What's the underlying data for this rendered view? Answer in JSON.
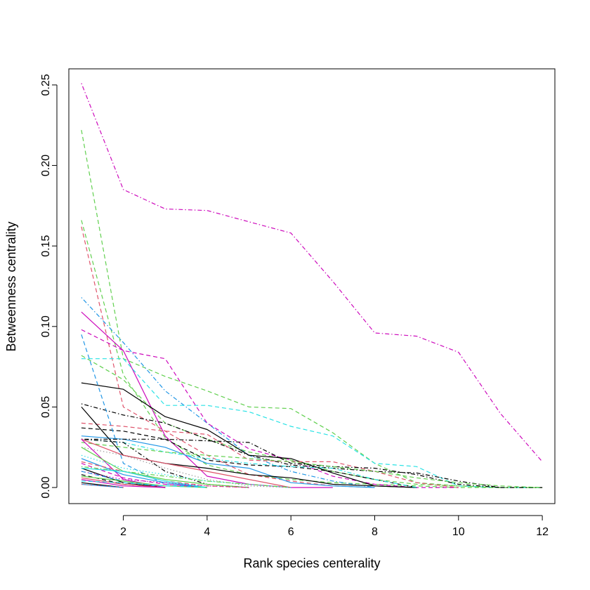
{
  "chart_data": {
    "type": "line",
    "title": "",
    "xlabel": "Rank species centerality",
    "ylabel": "Betweenness centrality",
    "xlim": [
      0.7,
      12.3
    ],
    "ylim": [
      -0.01,
      0.26
    ],
    "xticks": [
      2,
      4,
      6,
      8,
      10,
      12
    ],
    "yticks": [
      0.0,
      0.05,
      0.1,
      0.15,
      0.2,
      0.25
    ],
    "xtick_labels": [
      "2",
      "4",
      "6",
      "8",
      "10",
      "12"
    ],
    "ytick_labels": [
      "0.00",
      "0.05",
      "0.10",
      "0.15",
      "0.20",
      "0.25"
    ],
    "grid": false,
    "legend": "none",
    "series": [
      {
        "color": "#CD0BBC",
        "dash": "dotdash",
        "x": [
          1,
          2,
          3,
          4,
          5,
          6,
          7,
          8,
          9,
          10,
          11,
          12
        ],
        "y": [
          0.251,
          0.185,
          0.173,
          0.172,
          0.165,
          0.158,
          0.128,
          0.096,
          0.094,
          0.084,
          0.046,
          0.016
        ]
      },
      {
        "color": "#61D04F",
        "dash": "dashed",
        "x": [
          1,
          2,
          3,
          4,
          5,
          6,
          7,
          8,
          9,
          10,
          11,
          12
        ],
        "y": [
          0.222,
          0.08,
          0.069,
          0.06,
          0.05,
          0.049,
          0.034,
          0.015,
          0.003,
          0.001,
          0.0,
          0.0
        ]
      },
      {
        "color": "#61D04F",
        "dash": "dashed",
        "x": [
          1,
          2,
          3,
          4,
          5,
          6,
          7,
          8,
          9,
          10,
          11,
          12
        ],
        "y": [
          0.166,
          0.07,
          0.031,
          0.014,
          0.008,
          0.005,
          0.003,
          0.002,
          0.001,
          0.0,
          0.0,
          0.0
        ]
      },
      {
        "color": "#DF536B",
        "dash": "dashed",
        "x": [
          1,
          2,
          3,
          4,
          5,
          6,
          7,
          8
        ],
        "y": [
          0.162,
          0.05,
          0.035,
          0.02,
          0.008,
          0.004,
          0.001,
          0.0
        ]
      },
      {
        "color": "#2297E6",
        "dash": "dotdash",
        "x": [
          1,
          2,
          3,
          4,
          5,
          6,
          7,
          8
        ],
        "y": [
          0.118,
          0.09,
          0.06,
          0.04,
          0.02,
          0.01,
          0.004,
          0.0
        ]
      },
      {
        "color": "#CD0BBC",
        "dash": "solid",
        "x": [
          1,
          2,
          3,
          4,
          5,
          6,
          7
        ],
        "y": [
          0.109,
          0.085,
          0.032,
          0.007,
          0.002,
          0.0,
          0.0
        ]
      },
      {
        "color": "#CD0BBC",
        "dash": "dashed",
        "x": [
          1,
          2,
          3,
          4,
          5,
          6,
          7,
          8,
          9,
          10
        ],
        "y": [
          0.098,
          0.085,
          0.08,
          0.04,
          0.024,
          0.017,
          0.007,
          0.002,
          0.0,
          0.0
        ]
      },
      {
        "color": "#28E2E5",
        "dash": "dashed",
        "x": [
          1,
          2,
          3,
          4,
          5,
          6,
          7,
          8,
          9,
          10,
          11,
          12
        ],
        "y": [
          0.08,
          0.08,
          0.051,
          0.051,
          0.047,
          0.038,
          0.032,
          0.015,
          0.013,
          0.001,
          0.0,
          0.0
        ]
      },
      {
        "color": "#61D04F",
        "dash": "dashed",
        "x": [
          1,
          2,
          3,
          4,
          5,
          6,
          7,
          8,
          9,
          10,
          11,
          12
        ],
        "y": [
          0.082,
          0.067,
          0.04,
          0.03,
          0.022,
          0.017,
          0.01,
          0.005,
          0.002,
          0.001,
          0.0,
          0.0
        ]
      },
      {
        "color": "#000000",
        "dash": "solid",
        "x": [
          1,
          2,
          3,
          4,
          5,
          6,
          7,
          8,
          9
        ],
        "y": [
          0.065,
          0.061,
          0.044,
          0.036,
          0.02,
          0.018,
          0.009,
          0.001,
          0.0
        ]
      },
      {
        "color": "#000000",
        "dash": "dotdash",
        "x": [
          1,
          2,
          3,
          4,
          5,
          6,
          7,
          8,
          9,
          10,
          11,
          12
        ],
        "y": [
          0.052,
          0.045,
          0.04,
          0.03,
          0.02,
          0.014,
          0.012,
          0.01,
          0.009,
          0.004,
          0.0,
          0.0
        ]
      },
      {
        "color": "#DF536B",
        "dash": "dashed",
        "x": [
          1,
          2,
          3,
          4,
          5,
          6,
          7,
          8,
          9,
          10
        ],
        "y": [
          0.04,
          0.038,
          0.035,
          0.033,
          0.017,
          0.016,
          0.016,
          0.01,
          0.003,
          0.0
        ]
      },
      {
        "color": "#000000",
        "dash": "dashed",
        "x": [
          1,
          2,
          3,
          4,
          5,
          6,
          7,
          8,
          9
        ],
        "y": [
          0.037,
          0.035,
          0.03,
          0.017,
          0.014,
          0.013,
          0.01,
          0.005,
          0.0
        ]
      },
      {
        "color": "#2297E6",
        "dash": "solid",
        "x": [
          1,
          2,
          3,
          4,
          5,
          6,
          7,
          8
        ],
        "y": [
          0.032,
          0.03,
          0.025,
          0.015,
          0.012,
          0.003,
          0.001,
          0.0
        ]
      },
      {
        "color": "#000000",
        "dash": "solid",
        "x": [
          1,
          2,
          3,
          4,
          5,
          6,
          7,
          8,
          9
        ],
        "y": [
          0.05,
          0.02,
          0.015,
          0.012,
          0.008,
          0.006,
          0.002,
          0.001,
          0.0
        ]
      },
      {
        "color": "#28E2E5",
        "dash": "dotdash",
        "x": [
          1,
          2,
          3,
          4,
          5,
          6,
          7,
          8,
          9
        ],
        "y": [
          0.03,
          0.028,
          0.022,
          0.018,
          0.015,
          0.013,
          0.012,
          0.005,
          0.0
        ]
      },
      {
        "color": "#000000",
        "dash": "dotdash",
        "x": [
          1,
          2,
          3,
          4,
          5,
          6,
          7,
          8,
          9,
          10,
          11
        ],
        "y": [
          0.03,
          0.03,
          0.03,
          0.029,
          0.028,
          0.015,
          0.013,
          0.012,
          0.008,
          0.002,
          0.0
        ]
      },
      {
        "color": "#000000",
        "dash": "dotdash",
        "x": [
          1,
          2,
          3,
          4,
          5
        ],
        "y": [
          0.03,
          0.028,
          0.01,
          0.002,
          0.0
        ]
      },
      {
        "color": "#2297E6",
        "dash": "dashed",
        "x": [
          1,
          2,
          3,
          4
        ],
        "y": [
          0.095,
          0.015,
          0.002,
          0.0
        ]
      },
      {
        "color": "#61D04F",
        "dash": "dashed",
        "x": [
          1,
          2,
          3,
          4,
          5,
          6,
          7,
          8,
          9,
          10,
          11,
          12
        ],
        "y": [
          0.028,
          0.025,
          0.022,
          0.02,
          0.018,
          0.016,
          0.013,
          0.01,
          0.006,
          0.003,
          0.001,
          0.0
        ]
      },
      {
        "color": "#9E9E9E",
        "dash": "dotted",
        "x": [
          1,
          2,
          3,
          4,
          5,
          6
        ],
        "y": [
          0.025,
          0.02,
          0.012,
          0.005,
          0.001,
          0.0
        ]
      },
      {
        "color": "#DF536B",
        "dash": "solid",
        "x": [
          1,
          2,
          3,
          4,
          5,
          6
        ],
        "y": [
          0.03,
          0.02,
          0.015,
          0.01,
          0.005,
          0.0
        ]
      },
      {
        "color": "#CD0BBC",
        "dash": "solid",
        "x": [
          1,
          2,
          3
        ],
        "y": [
          0.03,
          0.005,
          0.0
        ]
      },
      {
        "color": "#61D04F",
        "dash": "solid",
        "x": [
          1,
          2,
          3,
          4,
          5
        ],
        "y": [
          0.025,
          0.01,
          0.005,
          0.002,
          0.0
        ]
      },
      {
        "color": "#28E2E5",
        "dash": "dotted",
        "x": [
          1,
          2,
          3,
          4,
          5,
          6
        ],
        "y": [
          0.02,
          0.012,
          0.008,
          0.004,
          0.002,
          0.0
        ]
      },
      {
        "color": "#2297E6",
        "dash": "solid",
        "x": [
          1,
          2,
          3,
          4
        ],
        "y": [
          0.018,
          0.008,
          0.003,
          0.0
        ]
      },
      {
        "color": "#DF536B",
        "dash": "dashed",
        "x": [
          1,
          2,
          3,
          4,
          5
        ],
        "y": [
          0.016,
          0.01,
          0.004,
          0.001,
          0.0
        ]
      },
      {
        "color": "#CD0BBC",
        "dash": "dashed",
        "x": [
          1,
          2,
          3,
          4
        ],
        "y": [
          0.015,
          0.006,
          0.002,
          0.0
        ]
      },
      {
        "color": "#000000",
        "dash": "solid",
        "x": [
          1,
          2,
          3
        ],
        "y": [
          0.012,
          0.003,
          0.0
        ]
      },
      {
        "color": "#61D04F",
        "dash": "dotdash",
        "x": [
          1,
          2,
          3,
          4,
          5,
          6
        ],
        "y": [
          0.013,
          0.01,
          0.007,
          0.004,
          0.002,
          0.0
        ]
      },
      {
        "color": "#28E2E5",
        "dash": "solid",
        "x": [
          1,
          2,
          3,
          4
        ],
        "y": [
          0.012,
          0.01,
          0.004,
          0.0
        ]
      },
      {
        "color": "#CD0BBC",
        "dash": "dotted",
        "x": [
          1,
          2,
          3,
          4,
          5
        ],
        "y": [
          0.01,
          0.005,
          0.003,
          0.001,
          0.0
        ]
      },
      {
        "color": "#2297E6",
        "dash": "dashed",
        "x": [
          1,
          2,
          3
        ],
        "y": [
          0.01,
          0.004,
          0.0
        ]
      },
      {
        "color": "#000000",
        "dash": "dashed",
        "x": [
          1,
          2,
          3
        ],
        "y": [
          0.008,
          0.002,
          0.0
        ]
      },
      {
        "color": "#DF536B",
        "dash": "solid",
        "x": [
          1,
          2,
          3
        ],
        "y": [
          0.006,
          0.002,
          0.0
        ]
      },
      {
        "color": "#61D04F",
        "dash": "solid",
        "x": [
          1,
          2,
          3,
          4
        ],
        "y": [
          0.007,
          0.004,
          0.001,
          0.0
        ]
      },
      {
        "color": "#CD0BBC",
        "dash": "solid",
        "x": [
          1,
          2,
          3
        ],
        "y": [
          0.005,
          0.001,
          0.0
        ]
      },
      {
        "color": "#28E2E5",
        "dash": "dashed",
        "x": [
          1,
          2,
          3,
          4
        ],
        "y": [
          0.004,
          0.003,
          0.001,
          0.0
        ]
      },
      {
        "color": "#000000",
        "dash": "solid",
        "x": [
          1,
          2
        ],
        "y": [
          0.003,
          0.0
        ]
      },
      {
        "color": "#2297E6",
        "dash": "solid",
        "x": [
          1,
          2
        ],
        "y": [
          0.002,
          0.0
        ]
      },
      {
        "color": "#DF536B",
        "dash": "dotted",
        "x": [
          1,
          2
        ],
        "y": [
          0.002,
          0.0
        ]
      }
    ]
  }
}
